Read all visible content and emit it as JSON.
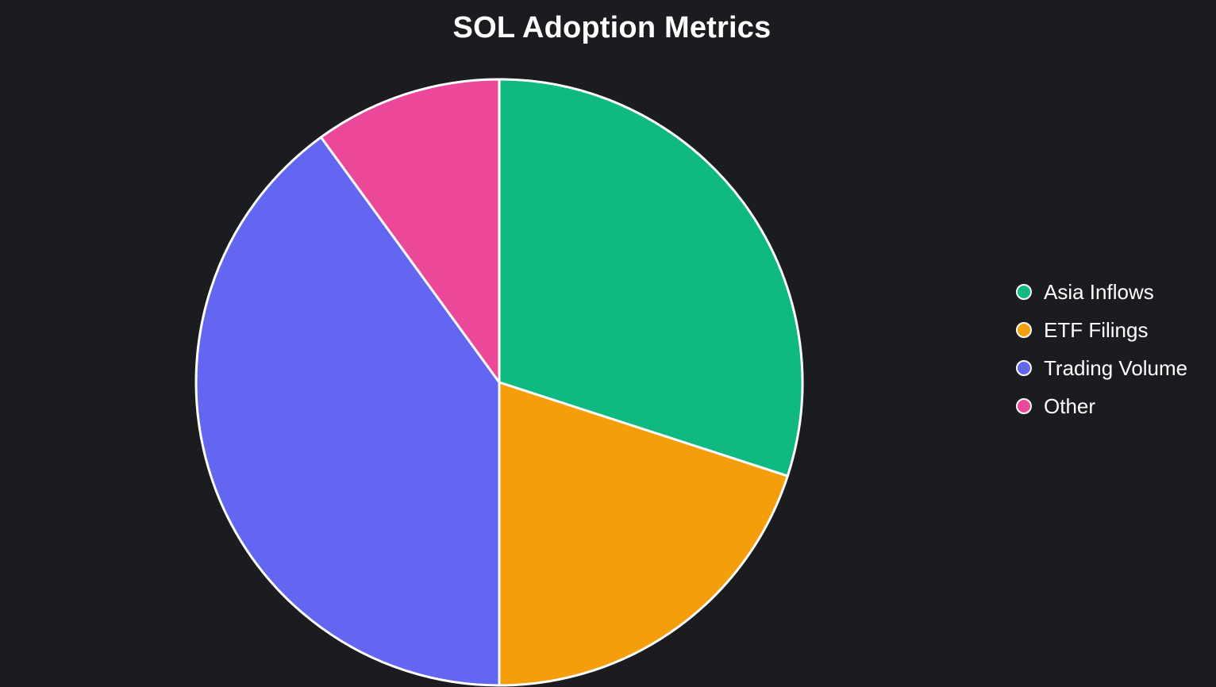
{
  "chart_data": {
    "type": "pie",
    "title": "SOL Adoption Metrics",
    "legend_position": "right",
    "start_angle": "top",
    "direction": "clockwise",
    "slices": [
      {
        "label": "Asia Inflows",
        "value": 30,
        "color": "#10b981"
      },
      {
        "label": "ETF Filings",
        "value": 20,
        "color": "#f59e0b"
      },
      {
        "label": "Trading Volume",
        "value": 40,
        "color": "#6366f1"
      },
      {
        "label": "Other",
        "value": 10,
        "color": "#ec4899"
      }
    ]
  },
  "colors": {
    "background": "#1b1c1f",
    "slice_border": "#ffffff",
    "text": "#ffffff"
  }
}
